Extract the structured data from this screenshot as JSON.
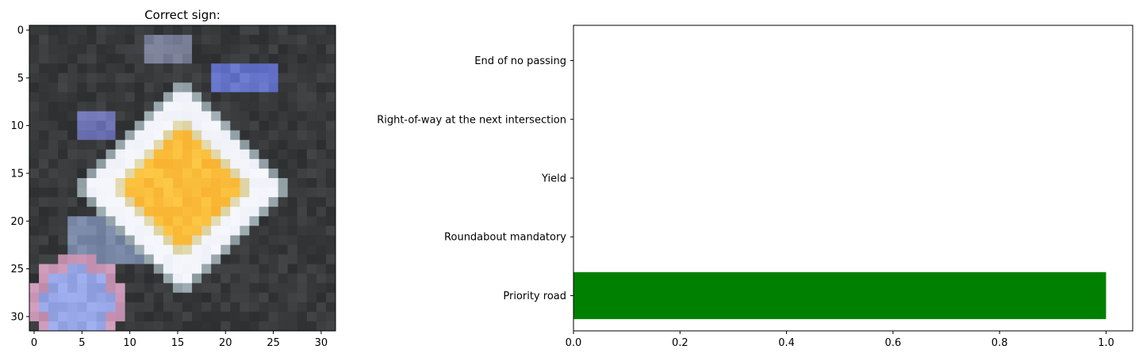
{
  "chart_data": [
    {
      "type": "heatmap",
      "title": "Correct sign:",
      "xlim": [
        0,
        31
      ],
      "ylim": [
        31,
        0
      ],
      "xticks": [
        0,
        5,
        10,
        15,
        20,
        25,
        30
      ],
      "yticks": [
        0,
        5,
        10,
        15,
        20,
        25,
        30
      ],
      "xlabel": "",
      "ylabel": "",
      "content": "32x32 pixel image of a yellow diamond Priority road sign"
    },
    {
      "type": "bar",
      "orientation": "horizontal",
      "title": "",
      "xlabel": "",
      "ylabel": "",
      "categories": [
        "Priority road",
        "Roundabout mandatory",
        "Yield",
        "Right-of-way at the next intersection",
        "End of no passing"
      ],
      "values": [
        1.0,
        0.0,
        0.0,
        0.0,
        0.0
      ],
      "xlim": [
        0,
        1.05
      ],
      "xticks": [
        0.0,
        0.2,
        0.4,
        0.6,
        0.8,
        1.0
      ],
      "bar_color": "#008000"
    }
  ]
}
